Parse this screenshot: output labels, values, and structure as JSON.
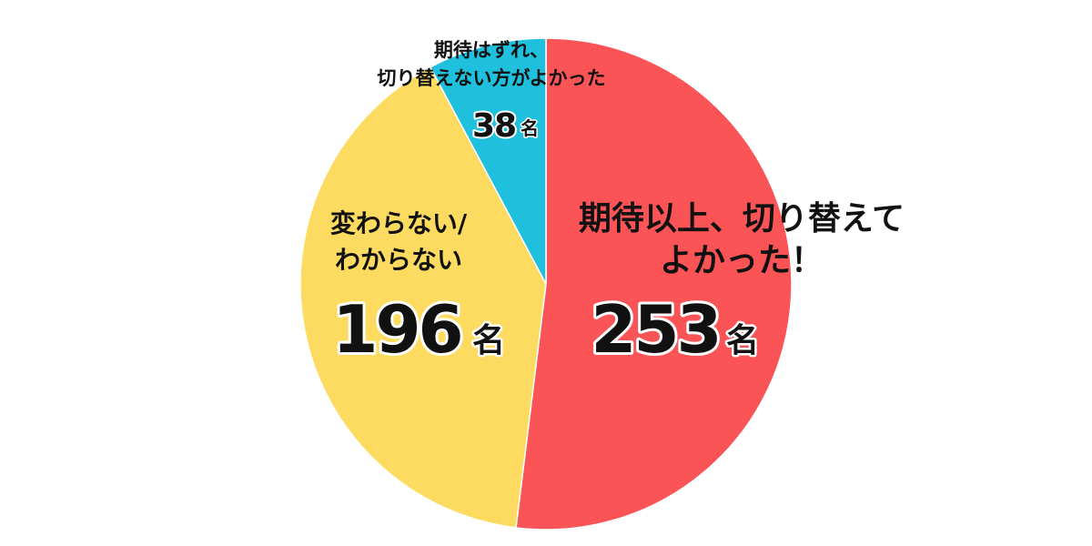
{
  "chart_data": {
    "type": "pie",
    "unit": "名",
    "slices": [
      {
        "label": "期待以上、切り替えてよかった！",
        "label_lines": [
          "期待以上、切り替えて",
          "よかった！"
        ],
        "value": 253,
        "color": "#fb5456"
      },
      {
        "label": "変わらない/わからない",
        "label_lines": [
          "変わらない/",
          "わからない"
        ],
        "value": 196,
        "color": "#fcdb60"
      },
      {
        "label": "期待はずれ、切り替えない方がよかった",
        "label_lines": [
          "期待はずれ、",
          "切り替えない方がよかった"
        ],
        "value": 38,
        "color": "#1ec0dd"
      }
    ]
  }
}
